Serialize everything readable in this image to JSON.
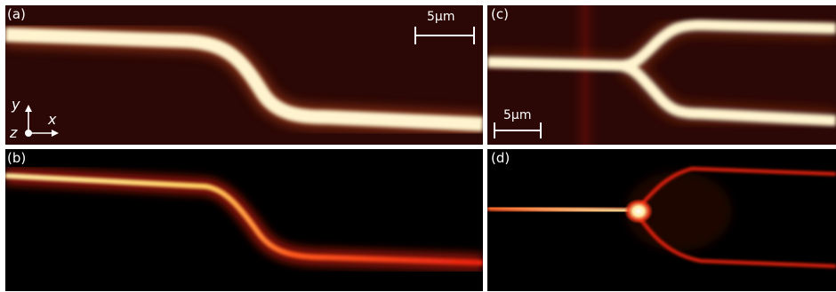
{
  "panels": {
    "a": {
      "label": "(a)",
      "scale_bar": "5μm"
    },
    "b": {
      "label": "(b)"
    },
    "c": {
      "label": "(c)",
      "scale_bar": "5μm"
    },
    "d": {
      "label": "(d)"
    }
  },
  "axes": {
    "y": "y",
    "x": "x",
    "z": "z"
  },
  "colors": {
    "background_topo": "#2b0705",
    "waveguide_topo": "#fff4cf",
    "background_optical": "#000000",
    "field_hot": "#ffe9a0",
    "field_red": "#ff2a16"
  }
}
